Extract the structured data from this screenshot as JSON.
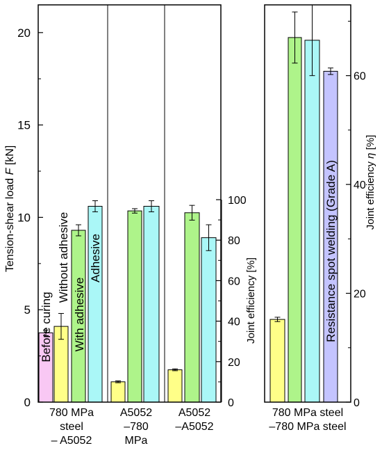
{
  "chart_data": [
    {
      "type": "bar",
      "panel": "left",
      "y_left": {
        "label": "Tension-shear load",
        "symbol": "F",
        "unit": "[kN]",
        "ylim": [
          0,
          21.5
        ],
        "ticks": [
          0,
          5,
          10,
          15,
          20
        ]
      },
      "y_right": {
        "label": "Joint efficiency [%]",
        "ylim_shown": [
          0,
          100
        ],
        "ticks": [
          0,
          20,
          40,
          60,
          80,
          100
        ]
      },
      "groups": [
        {
          "label_lines": [
            "780 MPa",
            "steel",
            "– A5052"
          ],
          "bars": [
            {
              "value": 3.75,
              "err": 0.15,
              "color": "#f9c8f4"
            },
            {
              "value": 4.1,
              "err": 0.7,
              "color": "#ffff88"
            },
            {
              "value": 9.3,
              "err": 0.3,
              "color": "#aef48a"
            },
            {
              "value": 10.6,
              "err": 0.3,
              "color": "#aaf7f7"
            }
          ]
        },
        {
          "label_lines": [
            "A5052",
            "–780",
            "MPa"
          ],
          "bars": [
            {
              "value": 1.1,
              "err": 0.05,
              "color": "#ffff88"
            },
            {
              "value": 10.35,
              "err": 0.12,
              "color": "#aef48a"
            },
            {
              "value": 10.6,
              "err": 0.3,
              "color": "#aaf7f7"
            }
          ]
        },
        {
          "label_lines": [
            "A5052",
            "–A5052"
          ],
          "bars": [
            {
              "value": 1.75,
              "err": 0.05,
              "color": "#ffff88"
            },
            {
              "value": 10.25,
              "err": 0.4,
              "color": "#aef48a"
            },
            {
              "value": 8.9,
              "err": 0.7,
              "color": "#aaf7f7"
            }
          ]
        }
      ],
      "bar_labels": [
        "Before curing",
        "Without adhesive",
        "With adhesive",
        "Adhesive"
      ]
    },
    {
      "type": "bar",
      "panel": "right",
      "y_right": {
        "label": "Joint efficiency",
        "symbol": "η",
        "unit": "[%]",
        "ylim": [
          0,
          73
        ],
        "ticks": [
          0,
          20,
          40,
          60
        ]
      },
      "bars": [
        {
          "value": 15.2,
          "err": 0.4,
          "color": "#ffff88"
        },
        {
          "value": 67.0,
          "err": 4.7,
          "color": "#aef48a"
        },
        {
          "value": 66.5,
          "err": 6.5,
          "color": "#aaf7f7"
        },
        {
          "value": 60.8,
          "err": 0.6,
          "color": "#c4c4ff"
        }
      ],
      "bar_label": "Resistance spot welding (Grade A)",
      "x_label_lines": [
        "780 MPa steel",
        "–780 MPa steel"
      ]
    }
  ]
}
